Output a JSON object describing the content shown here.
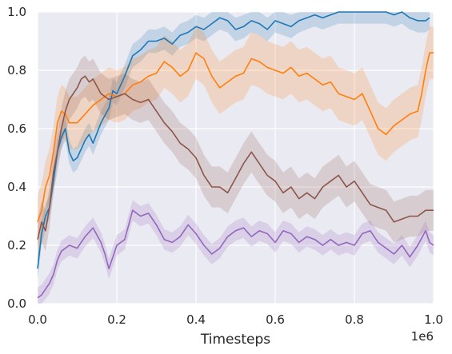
{
  "chart_data": {
    "type": "line",
    "title": "",
    "xlabel": "Timesteps",
    "ylabel": "",
    "x_offset_label": "1e6",
    "xlim": [
      0.0,
      1.0
    ],
    "ylim": [
      0.0,
      1.0
    ],
    "x_ticks": [
      "0.0",
      "0.2",
      "0.4",
      "0.6",
      "0.8",
      "1.0"
    ],
    "y_ticks": [
      "0.0",
      "0.2",
      "0.4",
      "0.6",
      "0.8",
      "1.0"
    ],
    "grid": true,
    "background": "#eaeaf2",
    "series": [
      {
        "color": "#1f77b4",
        "points": [
          [
            0.0,
            0.12
          ],
          [
            0.01,
            0.24
          ],
          [
            0.02,
            0.3
          ],
          [
            0.03,
            0.33
          ],
          [
            0.04,
            0.42
          ],
          [
            0.05,
            0.52
          ],
          [
            0.06,
            0.57
          ],
          [
            0.07,
            0.6
          ],
          [
            0.08,
            0.52
          ],
          [
            0.09,
            0.49
          ],
          [
            0.1,
            0.5
          ],
          [
            0.11,
            0.53
          ],
          [
            0.12,
            0.56
          ],
          [
            0.13,
            0.58
          ],
          [
            0.14,
            0.55
          ],
          [
            0.16,
            0.62
          ],
          [
            0.18,
            0.67
          ],
          [
            0.19,
            0.73
          ],
          [
            0.2,
            0.72
          ],
          [
            0.22,
            0.78
          ],
          [
            0.24,
            0.85
          ],
          [
            0.26,
            0.87
          ],
          [
            0.28,
            0.9
          ],
          [
            0.3,
            0.9
          ],
          [
            0.32,
            0.91
          ],
          [
            0.34,
            0.89
          ],
          [
            0.36,
            0.92
          ],
          [
            0.38,
            0.93
          ],
          [
            0.4,
            0.95
          ],
          [
            0.42,
            0.94
          ],
          [
            0.44,
            0.96
          ],
          [
            0.46,
            0.98
          ],
          [
            0.48,
            0.97
          ],
          [
            0.5,
            0.94
          ],
          [
            0.52,
            0.95
          ],
          [
            0.54,
            0.97
          ],
          [
            0.56,
            0.96
          ],
          [
            0.58,
            0.94
          ],
          [
            0.6,
            0.97
          ],
          [
            0.62,
            0.96
          ],
          [
            0.64,
            0.95
          ],
          [
            0.66,
            0.97
          ],
          [
            0.68,
            0.98
          ],
          [
            0.7,
            0.99
          ],
          [
            0.72,
            0.98
          ],
          [
            0.74,
            0.99
          ],
          [
            0.76,
            1.0
          ],
          [
            0.8,
            1.0
          ],
          [
            0.84,
            1.0
          ],
          [
            0.88,
            1.0
          ],
          [
            0.9,
            0.99
          ],
          [
            0.92,
            1.0
          ],
          [
            0.94,
            0.98
          ],
          [
            0.96,
            0.97
          ],
          [
            0.98,
            0.97
          ],
          [
            0.99,
            0.98
          ]
        ]
      },
      {
        "color": "#ff7f0e",
        "points": [
          [
            0.0,
            0.28
          ],
          [
            0.01,
            0.32
          ],
          [
            0.02,
            0.4
          ],
          [
            0.03,
            0.44
          ],
          [
            0.04,
            0.52
          ],
          [
            0.05,
            0.62
          ],
          [
            0.06,
            0.66
          ],
          [
            0.07,
            0.65
          ],
          [
            0.08,
            0.62
          ],
          [
            0.1,
            0.62
          ],
          [
            0.12,
            0.65
          ],
          [
            0.14,
            0.68
          ],
          [
            0.16,
            0.7
          ],
          [
            0.18,
            0.72
          ],
          [
            0.2,
            0.71
          ],
          [
            0.22,
            0.72
          ],
          [
            0.24,
            0.75
          ],
          [
            0.26,
            0.76
          ],
          [
            0.28,
            0.78
          ],
          [
            0.3,
            0.79
          ],
          [
            0.32,
            0.83
          ],
          [
            0.34,
            0.81
          ],
          [
            0.36,
            0.78
          ],
          [
            0.38,
            0.8
          ],
          [
            0.4,
            0.86
          ],
          [
            0.42,
            0.84
          ],
          [
            0.44,
            0.78
          ],
          [
            0.46,
            0.74
          ],
          [
            0.48,
            0.76
          ],
          [
            0.5,
            0.78
          ],
          [
            0.52,
            0.79
          ],
          [
            0.54,
            0.84
          ],
          [
            0.56,
            0.83
          ],
          [
            0.58,
            0.81
          ],
          [
            0.6,
            0.8
          ],
          [
            0.62,
            0.79
          ],
          [
            0.64,
            0.81
          ],
          [
            0.66,
            0.78
          ],
          [
            0.68,
            0.79
          ],
          [
            0.7,
            0.77
          ],
          [
            0.72,
            0.75
          ],
          [
            0.74,
            0.76
          ],
          [
            0.76,
            0.72
          ],
          [
            0.78,
            0.71
          ],
          [
            0.8,
            0.7
          ],
          [
            0.82,
            0.72
          ],
          [
            0.84,
            0.66
          ],
          [
            0.86,
            0.6
          ],
          [
            0.88,
            0.58
          ],
          [
            0.9,
            0.61
          ],
          [
            0.92,
            0.63
          ],
          [
            0.94,
            0.65
          ],
          [
            0.96,
            0.66
          ],
          [
            0.97,
            0.72
          ],
          [
            0.98,
            0.8
          ],
          [
            0.99,
            0.86
          ],
          [
            1.0,
            0.86
          ]
        ]
      },
      {
        "color": "#8c564b",
        "points": [
          [
            0.0,
            0.22
          ],
          [
            0.01,
            0.28
          ],
          [
            0.02,
            0.25
          ],
          [
            0.03,
            0.33
          ],
          [
            0.04,
            0.45
          ],
          [
            0.05,
            0.52
          ],
          [
            0.06,
            0.6
          ],
          [
            0.07,
            0.66
          ],
          [
            0.08,
            0.7
          ],
          [
            0.09,
            0.72
          ],
          [
            0.1,
            0.74
          ],
          [
            0.11,
            0.77
          ],
          [
            0.12,
            0.78
          ],
          [
            0.13,
            0.76
          ],
          [
            0.14,
            0.77
          ],
          [
            0.16,
            0.72
          ],
          [
            0.18,
            0.7
          ],
          [
            0.2,
            0.71
          ],
          [
            0.22,
            0.72
          ],
          [
            0.24,
            0.7
          ],
          [
            0.26,
            0.69
          ],
          [
            0.28,
            0.7
          ],
          [
            0.3,
            0.66
          ],
          [
            0.32,
            0.62
          ],
          [
            0.34,
            0.59
          ],
          [
            0.36,
            0.55
          ],
          [
            0.38,
            0.53
          ],
          [
            0.4,
            0.5
          ],
          [
            0.42,
            0.44
          ],
          [
            0.44,
            0.4
          ],
          [
            0.46,
            0.4
          ],
          [
            0.48,
            0.38
          ],
          [
            0.5,
            0.43
          ],
          [
            0.52,
            0.48
          ],
          [
            0.54,
            0.52
          ],
          [
            0.56,
            0.48
          ],
          [
            0.58,
            0.44
          ],
          [
            0.6,
            0.42
          ],
          [
            0.62,
            0.38
          ],
          [
            0.64,
            0.4
          ],
          [
            0.66,
            0.36
          ],
          [
            0.68,
            0.38
          ],
          [
            0.7,
            0.36
          ],
          [
            0.72,
            0.4
          ],
          [
            0.74,
            0.42
          ],
          [
            0.76,
            0.44
          ],
          [
            0.78,
            0.4
          ],
          [
            0.8,
            0.42
          ],
          [
            0.82,
            0.38
          ],
          [
            0.84,
            0.34
          ],
          [
            0.86,
            0.33
          ],
          [
            0.88,
            0.32
          ],
          [
            0.9,
            0.28
          ],
          [
            0.92,
            0.29
          ],
          [
            0.94,
            0.3
          ],
          [
            0.96,
            0.3
          ],
          [
            0.98,
            0.32
          ],
          [
            1.0,
            0.32
          ]
        ]
      },
      {
        "color": "#9467bd",
        "points": [
          [
            0.0,
            0.02
          ],
          [
            0.01,
            0.03
          ],
          [
            0.02,
            0.05
          ],
          [
            0.03,
            0.07
          ],
          [
            0.04,
            0.1
          ],
          [
            0.05,
            0.15
          ],
          [
            0.06,
            0.18
          ],
          [
            0.08,
            0.2
          ],
          [
            0.1,
            0.19
          ],
          [
            0.12,
            0.23
          ],
          [
            0.14,
            0.26
          ],
          [
            0.16,
            0.21
          ],
          [
            0.17,
            0.17
          ],
          [
            0.18,
            0.12
          ],
          [
            0.19,
            0.16
          ],
          [
            0.2,
            0.2
          ],
          [
            0.22,
            0.22
          ],
          [
            0.24,
            0.32
          ],
          [
            0.26,
            0.3
          ],
          [
            0.28,
            0.31
          ],
          [
            0.3,
            0.27
          ],
          [
            0.32,
            0.22
          ],
          [
            0.34,
            0.21
          ],
          [
            0.36,
            0.23
          ],
          [
            0.38,
            0.27
          ],
          [
            0.4,
            0.24
          ],
          [
            0.42,
            0.2
          ],
          [
            0.44,
            0.17
          ],
          [
            0.46,
            0.19
          ],
          [
            0.48,
            0.23
          ],
          [
            0.5,
            0.25
          ],
          [
            0.52,
            0.26
          ],
          [
            0.54,
            0.23
          ],
          [
            0.56,
            0.25
          ],
          [
            0.58,
            0.24
          ],
          [
            0.6,
            0.21
          ],
          [
            0.62,
            0.25
          ],
          [
            0.64,
            0.24
          ],
          [
            0.66,
            0.21
          ],
          [
            0.68,
            0.23
          ],
          [
            0.7,
            0.22
          ],
          [
            0.72,
            0.2
          ],
          [
            0.74,
            0.22
          ],
          [
            0.76,
            0.2
          ],
          [
            0.78,
            0.21
          ],
          [
            0.8,
            0.2
          ],
          [
            0.82,
            0.24
          ],
          [
            0.84,
            0.25
          ],
          [
            0.86,
            0.21
          ],
          [
            0.88,
            0.19
          ],
          [
            0.9,
            0.17
          ],
          [
            0.92,
            0.2
          ],
          [
            0.94,
            0.16
          ],
          [
            0.96,
            0.2
          ],
          [
            0.98,
            0.25
          ],
          [
            0.99,
            0.21
          ],
          [
            1.0,
            0.2
          ]
        ]
      }
    ]
  }
}
